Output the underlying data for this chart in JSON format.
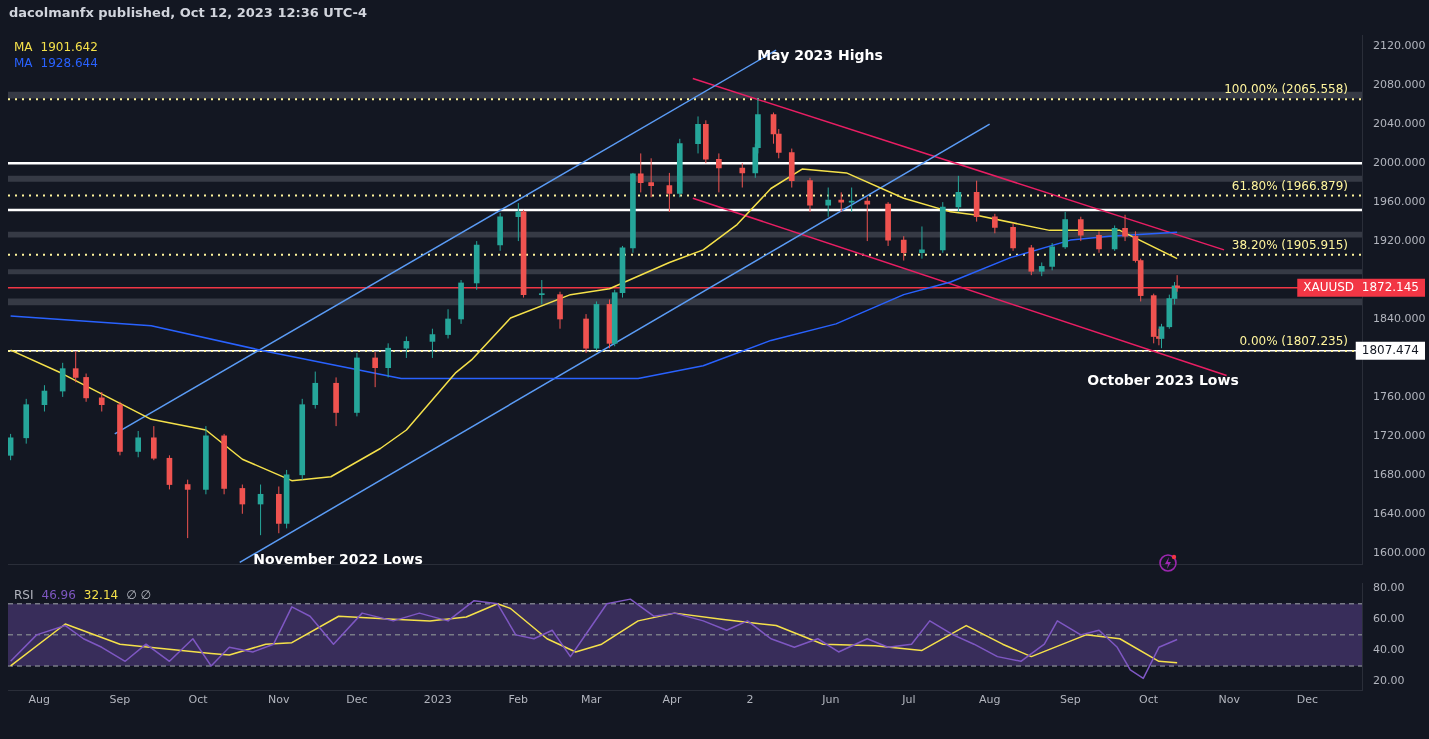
{
  "chart_data": [
    {
      "type": "candlestick",
      "title": "dacolmanfx published, Oct 12, 2023 12:36 UTC-4",
      "x": [
        "2022-07-21",
        "2022-07-27",
        "2022-08-03",
        "2022-08-10",
        "2022-08-15",
        "2022-08-19",
        "2022-08-25",
        "2022-09-01",
        "2022-09-08",
        "2022-09-14",
        "2022-09-20",
        "2022-09-27",
        "2022-10-04",
        "2022-10-11",
        "2022-10-18",
        "2022-10-25",
        "2022-11-01",
        "2022-11-04",
        "2022-11-10",
        "2022-11-15",
        "2022-11-23",
        "2022-12-01",
        "2022-12-08",
        "2022-12-13",
        "2022-12-20",
        "2022-12-30",
        "2023-01-05",
        "2023-01-10",
        "2023-01-16",
        "2023-01-25",
        "2023-02-01",
        "2023-02-03",
        "2023-02-10",
        "2023-02-17",
        "2023-02-27",
        "2023-03-03",
        "2023-03-08",
        "2023-03-10",
        "2023-03-13",
        "2023-03-17",
        "2023-03-20",
        "2023-03-24",
        "2023-03-31",
        "2023-04-04",
        "2023-04-11",
        "2023-04-14",
        "2023-04-19",
        "2023-04-28",
        "2023-05-03",
        "2023-05-04",
        "2023-05-10",
        "2023-05-12",
        "2023-05-17",
        "2023-05-24",
        "2023-05-31",
        "2023-06-05",
        "2023-06-09",
        "2023-06-15",
        "2023-06-23",
        "2023-06-29",
        "2023-07-06",
        "2023-07-14",
        "2023-07-20",
        "2023-07-27",
        "2023-08-03",
        "2023-08-10",
        "2023-08-17",
        "2023-08-21",
        "2023-08-25",
        "2023-08-30",
        "2023-09-05",
        "2023-09-12",
        "2023-09-18",
        "2023-09-22",
        "2023-09-26",
        "2023-09-28",
        "2023-10-03",
        "2023-10-05",
        "2023-10-06",
        "2023-10-09",
        "2023-10-11",
        "2023-10-12"
      ],
      "ohlc": [
        [
          1700,
          1722,
          1695,
          1718
        ],
        [
          1718,
          1758,
          1712,
          1752
        ],
        [
          1752,
          1772,
          1745,
          1766
        ],
        [
          1766,
          1795,
          1760,
          1789
        ],
        [
          1789,
          1807,
          1775,
          1780
        ],
        [
          1780,
          1784,
          1755,
          1759
        ],
        [
          1759,
          1765,
          1745,
          1752
        ],
        [
          1752,
          1755,
          1700,
          1704
        ],
        [
          1704,
          1725,
          1698,
          1718
        ],
        [
          1718,
          1730,
          1695,
          1697
        ],
        [
          1697,
          1700,
          1665,
          1670
        ],
        [
          1670,
          1675,
          1615,
          1665
        ],
        [
          1665,
          1730,
          1660,
          1720
        ],
        [
          1720,
          1722,
          1660,
          1666
        ],
        [
          1666,
          1670,
          1640,
          1650
        ],
        [
          1650,
          1670,
          1618,
          1660
        ],
        [
          1660,
          1668,
          1620,
          1630
        ],
        [
          1630,
          1685,
          1625,
          1680
        ],
        [
          1680,
          1758,
          1675,
          1752
        ],
        [
          1752,
          1786,
          1748,
          1774
        ],
        [
          1774,
          1780,
          1730,
          1744
        ],
        [
          1744,
          1805,
          1740,
          1800
        ],
        [
          1800,
          1806,
          1770,
          1790
        ],
        [
          1790,
          1815,
          1780,
          1810
        ],
        [
          1810,
          1822,
          1800,
          1817
        ],
        [
          1817,
          1830,
          1800,
          1824
        ],
        [
          1824,
          1850,
          1820,
          1840
        ],
        [
          1840,
          1880,
          1835,
          1877
        ],
        [
          1877,
          1920,
          1870,
          1916
        ],
        [
          1916,
          1949,
          1910,
          1945
        ],
        [
          1945,
          1959,
          1920,
          1950
        ],
        [
          1950,
          1952,
          1862,
          1865
        ],
        [
          1865,
          1880,
          1855,
          1865
        ],
        [
          1865,
          1868,
          1830,
          1840
        ],
        [
          1840,
          1845,
          1805,
          1810
        ],
        [
          1810,
          1858,
          1808,
          1855
        ],
        [
          1855,
          1860,
          1810,
          1815
        ],
        [
          1815,
          1870,
          1812,
          1867
        ],
        [
          1867,
          1915,
          1862,
          1913
        ],
        [
          1913,
          1990,
          1908,
          1989
        ],
        [
          1989,
          2010,
          1970,
          1980
        ],
        [
          1980,
          2005,
          1965,
          1977
        ],
        [
          1977,
          1990,
          1950,
          1969
        ],
        [
          1969,
          2025,
          1965,
          2020
        ],
        [
          2020,
          2048,
          2010,
          2040
        ],
        [
          2040,
          2044,
          2000,
          2004
        ],
        [
          2004,
          2010,
          1970,
          1995
        ],
        [
          1995,
          2000,
          1975,
          1990
        ],
        [
          1990,
          2020,
          1985,
          2016
        ],
        [
          2016,
          2067,
          2010,
          2050
        ],
        [
          2050,
          2052,
          2020,
          2030
        ],
        [
          2030,
          2035,
          2005,
          2011
        ],
        [
          2011,
          2015,
          1975,
          1982
        ],
        [
          1982,
          1985,
          1950,
          1957
        ],
        [
          1957,
          1975,
          1945,
          1962
        ],
        [
          1962,
          1970,
          1950,
          1960
        ],
        [
          1960,
          1975,
          1950,
          1961
        ],
        [
          1961,
          1965,
          1920,
          1958
        ],
        [
          1958,
          1960,
          1915,
          1921
        ],
        [
          1921,
          1925,
          1900,
          1908
        ],
        [
          1908,
          1935,
          1902,
          1911
        ],
        [
          1911,
          1960,
          1908,
          1955
        ],
        [
          1955,
          1987,
          1950,
          1970
        ],
        [
          1970,
          1982,
          1940,
          1945
        ],
        [
          1945,
          1948,
          1928,
          1934
        ],
        [
          1934,
          1938,
          1910,
          1913
        ],
        [
          1913,
          1916,
          1885,
          1889
        ],
        [
          1889,
          1898,
          1884,
          1894
        ],
        [
          1894,
          1918,
          1890,
          1914
        ],
        [
          1914,
          1950,
          1912,
          1942
        ],
        [
          1942,
          1945,
          1920,
          1926
        ],
        [
          1926,
          1930,
          1908,
          1912
        ],
        [
          1912,
          1936,
          1910,
          1933
        ],
        [
          1933,
          1947,
          1920,
          1925
        ],
        [
          1925,
          1930,
          1898,
          1900
        ],
        [
          1900,
          1902,
          1858,
          1864
        ],
        [
          1864,
          1866,
          1815,
          1822
        ],
        [
          1822,
          1830,
          1813,
          1820
        ],
        [
          1820,
          1835,
          1810,
          1832
        ],
        [
          1832,
          1865,
          1830,
          1861
        ],
        [
          1861,
          1878,
          1855,
          1874
        ],
        [
          1874,
          1885,
          1868,
          1872.145
        ]
      ],
      "series": [
        {
          "type": "line",
          "name": "MA",
          "color": "#f5e14a",
          "x": [
            "2022-07-21",
            "2022-08-09",
            "2022-09-13",
            "2022-10-04",
            "2022-10-18",
            "2022-11-06",
            "2022-11-21",
            "2022-12-10",
            "2022-12-20",
            "2023-01-08",
            "2023-01-14",
            "2023-01-29",
            "2023-02-21",
            "2023-03-08",
            "2023-03-31",
            "2023-04-13",
            "2023-04-26",
            "2023-05-09",
            "2023-05-21",
            "2023-06-07",
            "2023-06-29",
            "2023-07-17",
            "2023-07-26",
            "2023-08-24",
            "2023-09-20",
            "2023-10-12"
          ],
          "values": [
            1808,
            1785,
            1737,
            1726,
            1696,
            1674,
            1678,
            1707,
            1726,
            1785,
            1798,
            1841,
            1865,
            1871,
            1898,
            1911,
            1937,
            1974,
            1994,
            1990,
            1964,
            1950,
            1947,
            1931,
            1931,
            1902
          ]
        },
        {
          "type": "line",
          "name": "MA",
          "color": "#2962ff",
          "x": [
            "2022-07-21",
            "2022-09-13",
            "2022-10-25",
            "2022-12-18",
            "2023-03-19",
            "2023-04-13",
            "2023-05-09",
            "2023-06-03",
            "2023-06-29",
            "2023-07-17",
            "2023-08-09",
            "2023-09-01",
            "2023-09-16",
            "2023-10-12"
          ],
          "values": [
            1843,
            1833,
            1808,
            1779,
            1779,
            1792,
            1818,
            1835,
            1865,
            1878,
            1903,
            1921,
            1925,
            1929
          ]
        },
        {
          "type": "line",
          "color": "#5b9cf6",
          "x": [
            "2022-08-30",
            "2023-05-11"
          ],
          "values": [
            1722,
            2116
          ]
        },
        {
          "type": "line",
          "color": "#5b9cf6",
          "x": [
            "2022-10-17",
            "2023-08-01"
          ],
          "values": [
            1590,
            2040
          ]
        },
        {
          "type": "line",
          "color": "#e91e63",
          "x": [
            "2023-04-09",
            "2023-10-30"
          ],
          "values": [
            2087,
            1911
          ]
        },
        {
          "type": "line",
          "color": "#e91e63",
          "x": [
            "2023-04-09",
            "2023-10-31"
          ],
          "values": [
            1964,
            1782
          ]
        }
      ],
      "xlim": [
        "2022-07-20",
        "2023-12-22"
      ],
      "ylim": [
        1588,
        2131
      ],
      "yticks": [
        {
          "value": 1600,
          "label": "1600.000"
        },
        {
          "value": 1640,
          "label": "1640.000"
        },
        {
          "value": 1680,
          "label": "1680.000"
        },
        {
          "value": 1720,
          "label": "1720.000"
        },
        {
          "value": 1760,
          "label": "1760.000"
        },
        {
          "value": 1840,
          "label": "1840.000"
        },
        {
          "value": 1920,
          "label": "1920.000"
        },
        {
          "value": 1960,
          "label": "1960.000"
        },
        {
          "value": 2000,
          "label": "2000.000"
        },
        {
          "value": 2040,
          "label": "2040.000"
        },
        {
          "value": 2080,
          "label": "2080.000"
        },
        {
          "value": 2120,
          "label": "2120.000"
        }
      ],
      "bands": [
        {
          "axis": "y",
          "from": 2066.5,
          "to": 2073.4,
          "color": "#787b86"
        },
        {
          "axis": "y",
          "from": 1981,
          "to": 1987,
          "color": "#787b86"
        },
        {
          "axis": "y",
          "from": 1923.6,
          "to": 1929.5,
          "color": "#787b86"
        },
        {
          "axis": "y",
          "from": 1886,
          "to": 1891,
          "color": "#787b86"
        },
        {
          "axis": "y",
          "from": 1854,
          "to": 1861,
          "color": "#787b86"
        }
      ],
      "ref_lines": [
        {
          "axis": "y",
          "value": 2000,
          "line_style": "solid"
        },
        {
          "axis": "y",
          "value": 1952,
          "line_style": "solid"
        },
        {
          "axis": "y",
          "value": 1807.474,
          "label": "1807.474",
          "color": "#ffffff",
          "line_style": "solid"
        },
        {
          "axis": "y",
          "value": 2065.558,
          "label": "100.00% (2065.558)",
          "color": "#fff59d",
          "line_style": "dotted"
        },
        {
          "axis": "y",
          "value": 1966.879,
          "label": "61.80% (1966.879)",
          "color": "#fff59d",
          "line_style": "dotted"
        },
        {
          "axis": "y",
          "value": 1905.915,
          "label": "38.20% (1905.915)",
          "color": "#fff59d",
          "line_style": "dotted"
        },
        {
          "axis": "y",
          "value": 1807.235,
          "label": "0.00% (1807.235)",
          "color": "#fff59d",
          "line_style": "dotted"
        },
        {
          "axis": "y",
          "value": 1872.145,
          "label": "XAUUSD  1872.145",
          "color": "#f23645",
          "line_style": "solid"
        }
      ],
      "annotations": [
        "May 2023 Highs",
        "November 2022 Lows",
        "October 2023 Lows",
        "1901.642",
        "1928.644"
      ],
      "legend": "top left",
      "tick_labels": "y"
    },
    {
      "type": "line",
      "legend_title": "RSI",
      "series": [
        {
          "color": "#7e57c2",
          "x": [
            "2022-07-21",
            "2022-07-31",
            "2022-08-11",
            "2022-08-18",
            "2022-08-25",
            "2022-09-03",
            "2022-09-11",
            "2022-09-20",
            "2022-09-29",
            "2022-10-06",
            "2022-10-13",
            "2022-10-22",
            "2022-10-30",
            "2022-11-06",
            "2022-11-13",
            "2022-11-22",
            "2022-12-03",
            "2022-12-15",
            "2022-12-25",
            "2023-01-05",
            "2023-01-15",
            "2023-01-24",
            "2023-01-31",
            "2023-02-07",
            "2023-02-14",
            "2023-02-21",
            "2023-02-28",
            "2023-03-07",
            "2023-03-16",
            "2023-03-25",
            "2023-04-02",
            "2023-04-13",
            "2023-04-22",
            "2023-04-30",
            "2023-05-09",
            "2023-05-18",
            "2023-05-27",
            "2023-06-04",
            "2023-06-15",
            "2023-06-23",
            "2023-07-02",
            "2023-07-09",
            "2023-07-18",
            "2023-07-26",
            "2023-08-04",
            "2023-08-13",
            "2023-08-22",
            "2023-08-27",
            "2023-09-05",
            "2023-09-12",
            "2023-09-19",
            "2023-09-24",
            "2023-09-29",
            "2023-10-05",
            "2023-10-12"
          ],
          "values": [
            33,
            50,
            56,
            47.5,
            42,
            33,
            44,
            33,
            47.5,
            30,
            42,
            39,
            44,
            68,
            62,
            44,
            64,
            59,
            64,
            59,
            72,
            70,
            50,
            47.5,
            53,
            36,
            53,
            70,
            73,
            62,
            64,
            59,
            53,
            59,
            47.5,
            42,
            47.5,
            39,
            47.5,
            42,
            44,
            59,
            50,
            44,
            36,
            33,
            44,
            59,
            50,
            53,
            42,
            27.5,
            22,
            42,
            47
          ]
        },
        {
          "color": "#f5e14a",
          "x": [
            "2022-07-21",
            "2022-08-11",
            "2022-09-01",
            "2022-09-18",
            "2022-10-06",
            "2022-10-13",
            "2022-10-27",
            "2022-11-06",
            "2022-11-24",
            "2022-12-15",
            "2022-12-29",
            "2023-01-12",
            "2023-01-24",
            "2023-01-29",
            "2023-02-12",
            "2023-02-23",
            "2023-03-05",
            "2023-03-19",
            "2023-04-02",
            "2023-04-20",
            "2023-05-11",
            "2023-05-29",
            "2023-06-18",
            "2023-07-06",
            "2023-07-23",
            "2023-08-06",
            "2023-08-17",
            "2023-09-07",
            "2023-09-20",
            "2023-10-05",
            "2023-10-12"
          ],
          "values": [
            30,
            57,
            44,
            41,
            38,
            37,
            44,
            45,
            62,
            60,
            59,
            61.5,
            70,
            67,
            47.5,
            39,
            44,
            59,
            64,
            60,
            56,
            44,
            43,
            40,
            56,
            44,
            36,
            50,
            47.5,
            33,
            32
          ]
        }
      ],
      "xlim": [
        "2022-07-20",
        "2023-12-22"
      ],
      "xticks": [
        {
          "value": "2022-08-01",
          "label": "Aug"
        },
        {
          "value": "2022-09-01",
          "label": "Sep"
        },
        {
          "value": "2022-10-01",
          "label": "Oct"
        },
        {
          "value": "2022-11-01",
          "label": "Nov"
        },
        {
          "value": "2022-12-01",
          "label": "Dec"
        },
        {
          "value": "2023-01-01",
          "label": "2023"
        },
        {
          "value": "2023-02-01",
          "label": "Feb"
        },
        {
          "value": "2023-03-01",
          "label": "Mar"
        },
        {
          "value": "2023-04-01",
          "label": "Apr"
        },
        {
          "value": "2023-05-01",
          "label": "2"
        },
        {
          "value": "2023-06-01",
          "label": "Jun"
        },
        {
          "value": "2023-07-01",
          "label": "Jul"
        },
        {
          "value": "2023-08-01",
          "label": "Aug"
        },
        {
          "value": "2023-09-01",
          "label": "Sep"
        },
        {
          "value": "2023-10-01",
          "label": "Oct"
        },
        {
          "value": "2023-11-01",
          "label": "Nov"
        },
        {
          "value": "2023-12-01",
          "label": "Dec"
        }
      ],
      "ylim": [
        14,
        83
      ],
      "yticks": [
        {
          "value": 20,
          "label": "20.00"
        },
        {
          "value": 40,
          "label": "40.00"
        },
        {
          "value": 60,
          "label": "60.00"
        },
        {
          "value": 80,
          "label": "80.00"
        }
      ],
      "bands": [
        {
          "axis": "y",
          "from": 30,
          "to": 70,
          "color": "#7e57c2"
        }
      ],
      "ref_lines": [
        {
          "axis": "y",
          "value": 70,
          "color": "#787b86",
          "line_style": "dashed"
        },
        {
          "axis": "y",
          "value": 50,
          "color": "#787b86",
          "line_style": "dashed"
        },
        {
          "axis": "y",
          "value": 30,
          "color": "#787b86",
          "line_style": "dashed"
        }
      ],
      "annotations": [
        "46.96",
        "32.14",
        "∅ ∅"
      ]
    }
  ]
}
